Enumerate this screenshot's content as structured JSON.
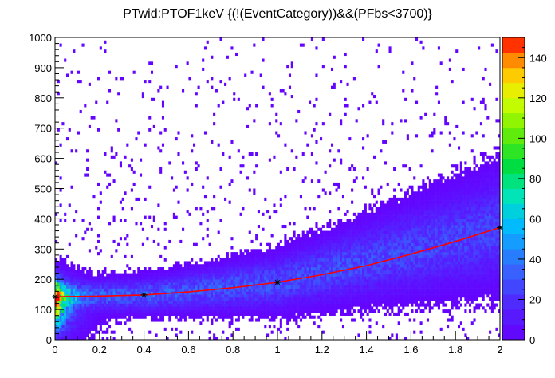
{
  "chart_data": {
    "type": "heatmap",
    "title": "PTwid:PTOF1keV {(!(EventCategory))&&(PFbs<3700)}",
    "xlabel": "",
    "ylabel": "",
    "xlim": [
      0,
      2
    ],
    "ylim": [
      0,
      1000
    ],
    "x_ticks": [
      "0",
      "0.2",
      "0.4",
      "0.6",
      "0.8",
      "1",
      "1.2",
      "1.4",
      "1.6",
      "1.8",
      "2"
    ],
    "y_ticks": [
      "0",
      "100",
      "200",
      "300",
      "400",
      "500",
      "600",
      "700",
      "800",
      "900",
      "1000"
    ],
    "colorbar": {
      "range": [
        0,
        150
      ],
      "ticks": [
        "0",
        "20",
        "40",
        "60",
        "80",
        "100",
        "120",
        "140"
      ],
      "tick_values": [
        0,
        20,
        40,
        60,
        80,
        100,
        120,
        140
      ]
    },
    "density_model": {
      "description": "2D histogram of counts; dense band rising from ~145 at x=0 to ~370 at x=2, dense core near x<0.3, y 70-200",
      "band_center": [
        [
          0,
          145
        ],
        [
          0.4,
          148
        ],
        [
          1.0,
          190
        ],
        [
          2.0,
          370
        ]
      ],
      "peak_counts": 150
    },
    "fit_curve": {
      "name": "fit",
      "color": "#ff0000",
      "x": [
        0,
        0.2,
        0.4,
        0.6,
        0.8,
        1.0,
        1.2,
        1.4,
        1.6,
        1.8,
        2.0
      ],
      "y": [
        142,
        144,
        148,
        158,
        172,
        190,
        215,
        245,
        283,
        325,
        371
      ]
    },
    "fit_markers": {
      "symbol": "asterisk",
      "x": [
        0,
        0.4,
        1.0,
        2.0
      ],
      "y": [
        142,
        148,
        190,
        371
      ]
    }
  }
}
